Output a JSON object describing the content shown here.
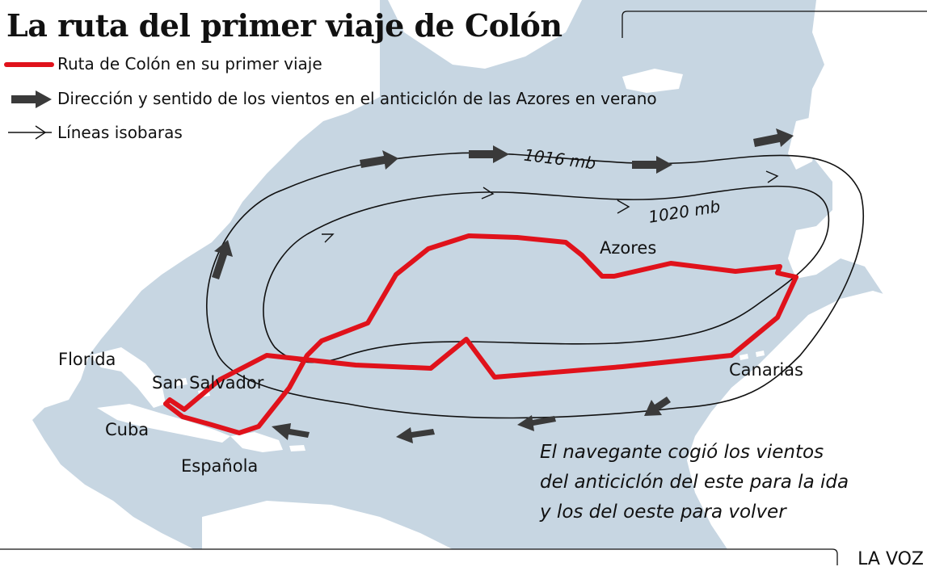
{
  "title": "La ruta del primer viaje de Colón",
  "legend": {
    "route": "Ruta de Colón en su primer viaje",
    "winds": "Dirección y sentido de los vientos en el anticiclón de las Azores en verano",
    "isobars": "Líneas isobaras"
  },
  "isobars": {
    "outer": "1016 mb",
    "inner": "1020 mb"
  },
  "places": {
    "florida": "Florida",
    "san_salvador": "San Salvador",
    "cuba": "Cuba",
    "espanola": "Española",
    "azores": "Azores",
    "canarias": "Canarias"
  },
  "note": {
    "line1": "El navegante cogió los vientos",
    "line2": "del anticiclón del este para la ida",
    "line3": "y los del oeste para volver"
  },
  "brand": "LA VOZ",
  "colors": {
    "ocean": "#c7d6e2",
    "land": "#ffffff",
    "route": "#e0121b",
    "wind_arrow": "#3a3a3a",
    "isobar": "#111111"
  }
}
